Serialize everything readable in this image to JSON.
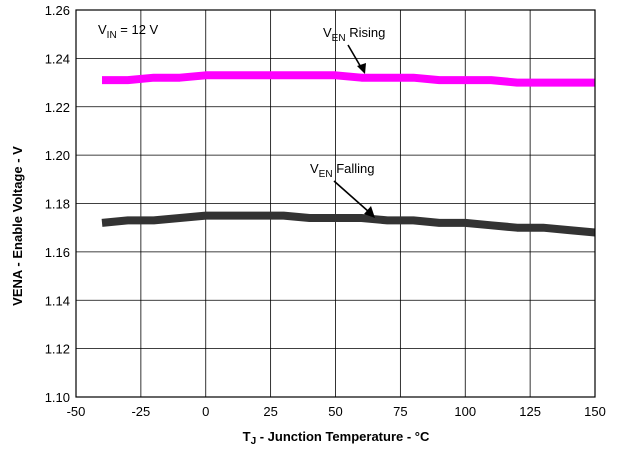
{
  "chart_data": {
    "type": "line",
    "xlabel_main": "T",
    "xlabel_sub": "J",
    "xlabel_rest": " - Junction Temperature - °C",
    "ylabel": "VENA - Enable Voltage - V",
    "xlim": [
      -50,
      150
    ],
    "ylim": [
      1.1,
      1.26
    ],
    "xticks": [
      -50,
      -25,
      0,
      25,
      50,
      75,
      100,
      125,
      150
    ],
    "yticks": [
      1.1,
      1.12,
      1.14,
      1.16,
      1.18,
      1.2,
      1.22,
      1.24,
      1.26
    ],
    "ytick_labels": [
      "1.10",
      "1.12",
      "1.14",
      "1.16",
      "1.18",
      "1.20",
      "1.22",
      "1.24",
      "1.26"
    ],
    "grid": true,
    "series": [
      {
        "name": "VEN Rising",
        "color": "#ff00ff",
        "x": [
          -40,
          -30,
          -20,
          -10,
          0,
          10,
          20,
          30,
          40,
          50,
          60,
          70,
          80,
          90,
          100,
          110,
          120,
          130,
          140,
          150
        ],
        "y": [
          1.231,
          1.231,
          1.232,
          1.232,
          1.233,
          1.233,
          1.233,
          1.233,
          1.233,
          1.233,
          1.232,
          1.232,
          1.232,
          1.231,
          1.231,
          1.231,
          1.23,
          1.23,
          1.23,
          1.23
        ]
      },
      {
        "name": "VEN Falling",
        "color": "#333333",
        "x": [
          -40,
          -30,
          -20,
          -10,
          0,
          10,
          20,
          30,
          40,
          50,
          60,
          70,
          80,
          90,
          100,
          110,
          120,
          130,
          140,
          150
        ],
        "y": [
          1.172,
          1.173,
          1.173,
          1.174,
          1.175,
          1.175,
          1.175,
          1.175,
          1.174,
          1.174,
          1.174,
          1.173,
          1.173,
          1.172,
          1.172,
          1.171,
          1.17,
          1.17,
          1.169,
          1.168
        ]
      }
    ],
    "annotations": {
      "vin": {
        "main": "V",
        "sub": "IN",
        "rest": " = 12 V"
      },
      "rising": {
        "main": "V",
        "sub": "EN",
        "rest": " Rising"
      },
      "falling": {
        "main": "V",
        "sub": "EN",
        "rest": " Falling"
      }
    }
  }
}
